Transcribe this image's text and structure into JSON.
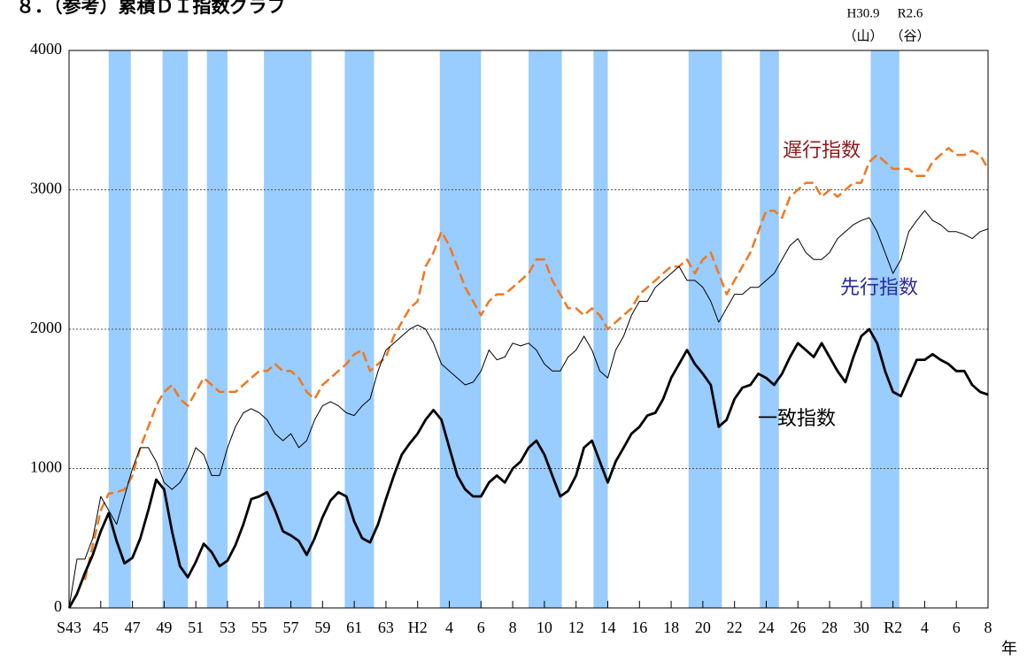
{
  "chart_data": {
    "type": "line",
    "title": "８．（参考）累積ＤＩ指数グラフ",
    "x_label": "年",
    "annotations": [
      "H30.9",
      "（山）",
      "R2.6",
      "（谷）"
    ],
    "xlim": [
      1968,
      2026
    ],
    "ylim": [
      0,
      4000
    ],
    "yticks": [
      0,
      1000,
      2000,
      3000,
      4000
    ],
    "grid": true,
    "xticks": [
      {
        "value": 1968,
        "label": "S43"
      },
      {
        "value": 1970,
        "label": "45"
      },
      {
        "value": 1972,
        "label": "47"
      },
      {
        "value": 1974,
        "label": "49"
      },
      {
        "value": 1976,
        "label": "51"
      },
      {
        "value": 1978,
        "label": "53"
      },
      {
        "value": 1980,
        "label": "55"
      },
      {
        "value": 1982,
        "label": "57"
      },
      {
        "value": 1984,
        "label": "59"
      },
      {
        "value": 1986,
        "label": "61"
      },
      {
        "value": 1988,
        "label": "63"
      },
      {
        "value": 1990,
        "label": "H2"
      },
      {
        "value": 1992,
        "label": "4"
      },
      {
        "value": 1994,
        "label": "6"
      },
      {
        "value": 1996,
        "label": "8"
      },
      {
        "value": 1998,
        "label": "10"
      },
      {
        "value": 2000,
        "label": "12"
      },
      {
        "value": 2002,
        "label": "14"
      },
      {
        "value": 2004,
        "label": "16"
      },
      {
        "value": 2006,
        "label": "18"
      },
      {
        "value": 2008,
        "label": "20"
      },
      {
        "value": 2010,
        "label": "22"
      },
      {
        "value": 2012,
        "label": "24"
      },
      {
        "value": 2014,
        "label": "26"
      },
      {
        "value": 2016,
        "label": "28"
      },
      {
        "value": 2018,
        "label": "30"
      },
      {
        "value": 2020,
        "label": "R2"
      },
      {
        "value": 2022,
        "label": "4"
      },
      {
        "value": 2024,
        "label": "6"
      },
      {
        "value": 2026,
        "label": "8"
      }
    ],
    "shaded_periods": [
      [
        1970.5,
        1971.9
      ],
      [
        1973.9,
        1975.5
      ],
      [
        1976.7,
        1978.0
      ],
      [
        1980.3,
        1983.3
      ],
      [
        1985.4,
        1987.25
      ],
      [
        1991.4,
        1994.0
      ],
      [
        1997.0,
        1999.1
      ],
      [
        2001.1,
        2002.0
      ],
      [
        2007.1,
        2009.2
      ],
      [
        2011.6,
        2012.8
      ],
      [
        2018.6,
        2020.4
      ]
    ],
    "shade_color": "#99ccff",
    "x": [
      1968,
      1968.5,
      1969,
      1969.5,
      1970,
      1970.5,
      1971,
      1971.5,
      1972,
      1972.5,
      1973,
      1973.5,
      1974,
      1974.5,
      1975,
      1975.5,
      1976,
      1976.5,
      1977,
      1977.5,
      1978,
      1978.5,
      1979,
      1979.5,
      1980,
      1980.5,
      1981,
      1981.5,
      1982,
      1982.5,
      1983,
      1983.5,
      1984,
      1984.5,
      1985,
      1985.5,
      1986,
      1986.5,
      1987,
      1987.5,
      1988,
      1988.5,
      1989,
      1989.5,
      1990,
      1990.5,
      1991,
      1991.5,
      1992,
      1992.5,
      1993,
      1993.5,
      1994,
      1994.5,
      1995,
      1995.5,
      1996,
      1996.5,
      1997,
      1997.5,
      1998,
      1998.5,
      1999,
      1999.5,
      2000,
      2000.5,
      2001,
      2001.5,
      2002,
      2002.5,
      2003,
      2003.5,
      2004,
      2004.5,
      2005,
      2005.5,
      2006,
      2006.5,
      2007,
      2007.5,
      2008,
      2008.5,
      2009,
      2009.5,
      2010,
      2010.5,
      2011,
      2011.5,
      2012,
      2012.5,
      2013,
      2013.5,
      2014,
      2014.5,
      2015,
      2015.5,
      2016,
      2016.5,
      2017,
      2017.5,
      2018,
      2018.5,
      2019,
      2019.5,
      2020,
      2020.5,
      2021,
      2021.5,
      2022,
      2022.5,
      2023,
      2023.5,
      2024,
      2024.5,
      2025,
      2025.5,
      2026
    ],
    "series": [
      {
        "name": "遅行指数",
        "color": "#f07820",
        "label_color": "#8b1a1a",
        "dashed": true,
        "width": 2.5,
        "values": [
          null,
          null,
          200,
          450,
          700,
          820,
          830,
          850,
          950,
          1150,
          1300,
          1450,
          1550,
          1600,
          1500,
          1450,
          1550,
          1650,
          1600,
          1550,
          1550,
          1550,
          1600,
          1650,
          1700,
          1700,
          1750,
          1700,
          1700,
          1650,
          1550,
          1500,
          1600,
          1650,
          1700,
          1750,
          1820,
          1850,
          1700,
          1750,
          1800,
          1950,
          2050,
          2150,
          2200,
          2450,
          2550,
          2700,
          2600,
          2450,
          2300,
          2200,
          2100,
          2200,
          2250,
          2250,
          2300,
          2350,
          2400,
          2500,
          2500,
          2350,
          2250,
          2150,
          2150,
          2100,
          2150,
          2100,
          2000,
          2050,
          2100,
          2150,
          2250,
          2300,
          2350,
          2400,
          2450,
          2450,
          2500,
          2400,
          2500,
          2550,
          2400,
          2250,
          2350,
          2450,
          2550,
          2700,
          2850,
          2850,
          2800,
          2950,
          3000,
          3050,
          3050,
          2950,
          3000,
          2950,
          3000,
          3050,
          3050,
          3200,
          3250,
          3200,
          3150,
          3150,
          3150,
          3100,
          3100,
          3200,
          3250,
          3300,
          3250,
          3250,
          3280,
          3250,
          3150
        ]
      },
      {
        "name": "先行指数",
        "color": "#000000",
        "label_color": "#2a2aa0",
        "dashed": false,
        "width": 1,
        "values": [
          0,
          350,
          350,
          500,
          800,
          700,
          600,
          800,
          1000,
          1150,
          1150,
          1050,
          900,
          850,
          900,
          1000,
          1150,
          1100,
          950,
          950,
          1150,
          1300,
          1400,
          1430,
          1400,
          1350,
          1250,
          1200,
          1250,
          1150,
          1200,
          1350,
          1450,
          1480,
          1450,
          1400,
          1380,
          1450,
          1500,
          1700,
          1850,
          1900,
          1950,
          2000,
          2030,
          2000,
          1900,
          1750,
          1700,
          1650,
          1600,
          1620,
          1700,
          1850,
          1780,
          1800,
          1900,
          1880,
          1900,
          1850,
          1750,
          1700,
          1700,
          1800,
          1850,
          1950,
          1850,
          1700,
          1650,
          1850,
          1950,
          2100,
          2200,
          2200,
          2300,
          2350,
          2400,
          2450,
          2350,
          2350,
          2300,
          2200,
          2050,
          2150,
          2250,
          2250,
          2300,
          2300,
          2350,
          2400,
          2500,
          2600,
          2650,
          2550,
          2500,
          2500,
          2550,
          2650,
          2700,
          2750,
          2780,
          2800,
          2700,
          2550,
          2400,
          2500,
          2700,
          2780,
          2850,
          2780,
          2750,
          2700,
          2700,
          2680,
          2650,
          2700,
          2720
        ]
      },
      {
        "name": "一致指数",
        "color": "#000000",
        "label_color": "#000000",
        "dashed": false,
        "width": 2.8,
        "values": [
          0,
          100,
          250,
          380,
          550,
          680,
          480,
          320,
          360,
          500,
          700,
          920,
          850,
          550,
          300,
          220,
          330,
          460,
          400,
          300,
          340,
          450,
          600,
          780,
          800,
          830,
          700,
          550,
          520,
          480,
          380,
          500,
          650,
          770,
          830,
          800,
          620,
          500,
          470,
          600,
          780,
          950,
          1100,
          1180,
          1250,
          1350,
          1420,
          1350,
          1150,
          950,
          850,
          800,
          800,
          900,
          950,
          900,
          1000,
          1050,
          1150,
          1200,
          1100,
          950,
          800,
          840,
          950,
          1150,
          1200,
          1050,
          900,
          1050,
          1150,
          1250,
          1300,
          1380,
          1400,
          1500,
          1650,
          1750,
          1850,
          1750,
          1680,
          1600,
          1300,
          1350,
          1500,
          1580,
          1600,
          1680,
          1650,
          1600,
          1680,
          1800,
          1900,
          1850,
          1800,
          1900,
          1800,
          1700,
          1620,
          1800,
          1950,
          2000,
          1900,
          1700,
          1550,
          1520,
          1650,
          1780,
          1780,
          1820,
          1780,
          1750,
          1700,
          1700,
          1600,
          1550,
          1530
        ]
      }
    ]
  }
}
